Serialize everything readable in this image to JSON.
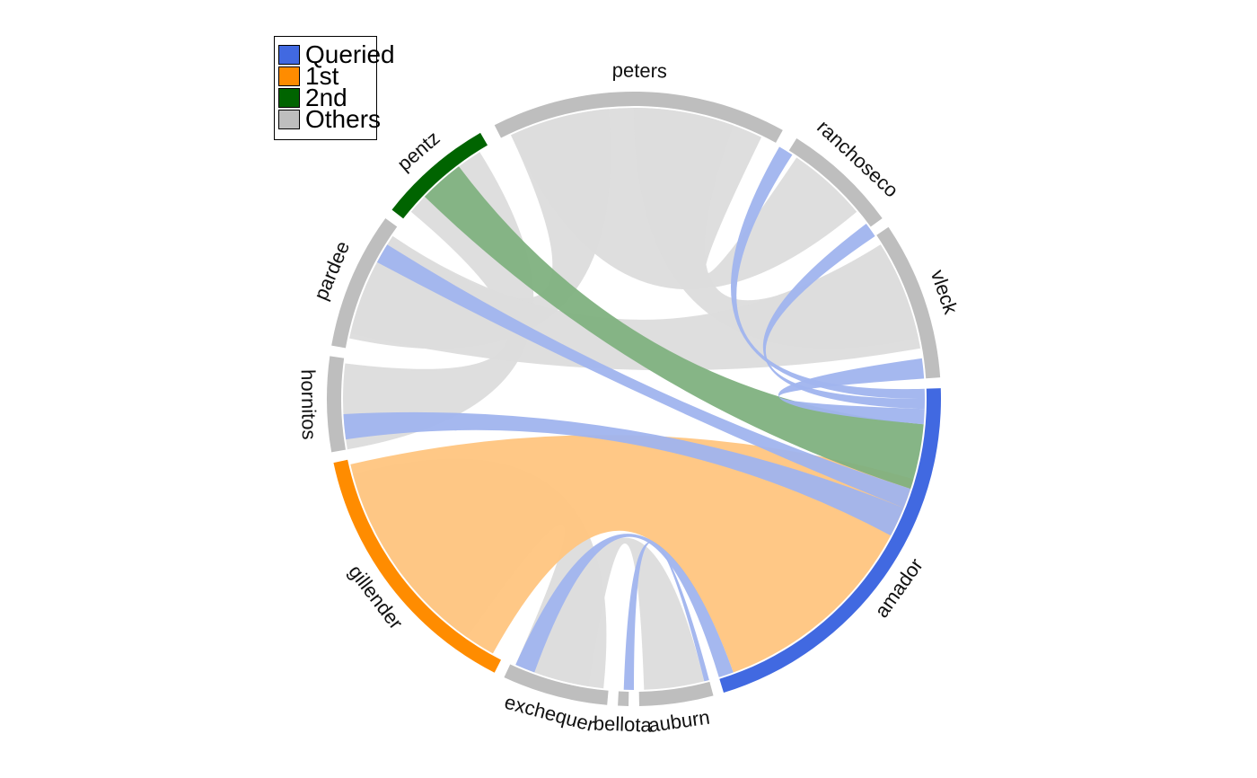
{
  "legend": {
    "items": [
      {
        "label": "Queried",
        "color": "#4169E1"
      },
      {
        "label": "1st",
        "color": "#FF8C00"
      },
      {
        "label": "2nd",
        "color": "#006400"
      },
      {
        "label": "Others",
        "color": "#BEBEBE"
      }
    ]
  },
  "colors": {
    "queried": "#4169E1",
    "first": "#FF8C00",
    "second": "#006400",
    "others": "#BEBEBE",
    "queried_link": "#A0B4EE",
    "first_link": "#FFC57F",
    "second_link": "#7FB17F",
    "others_link": "#DCDCDC"
  },
  "sectors": [
    {
      "name": "peters",
      "group": "others"
    },
    {
      "name": "ranchoseco",
      "group": "others"
    },
    {
      "name": "vleck",
      "group": "others"
    },
    {
      "name": "amador",
      "group": "queried"
    },
    {
      "name": "auburn",
      "group": "others"
    },
    {
      "name": "bellota",
      "group": "others"
    },
    {
      "name": "exchequer",
      "group": "others"
    },
    {
      "name": "gillender",
      "group": "first"
    },
    {
      "name": "hornitos",
      "group": "others"
    },
    {
      "name": "pardee",
      "group": "others"
    },
    {
      "name": "pentz",
      "group": "second"
    }
  ]
}
